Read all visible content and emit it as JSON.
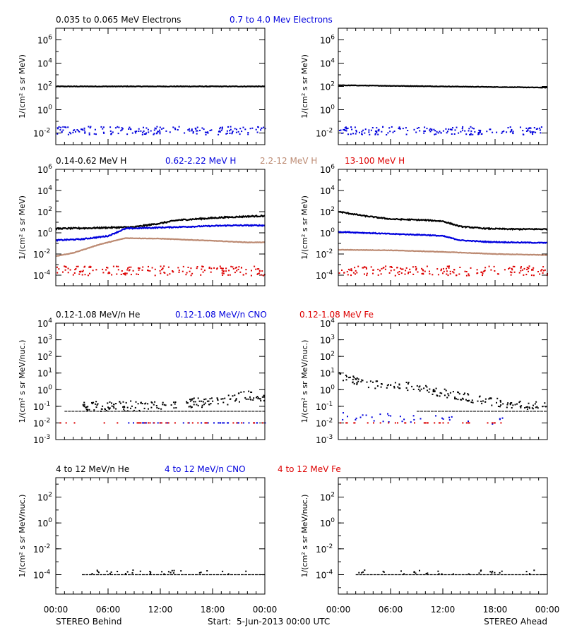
{
  "colors": {
    "black": "#000000",
    "blue": "#0000dd",
    "tan": "#bc8a72",
    "red": "#dd0000"
  },
  "time_axis": {
    "ticks": [
      "00:00",
      "06:00",
      "12:00",
      "18:00",
      "00:00"
    ],
    "left_caption": "STEREO Behind",
    "center_caption": "Start:  5-Jun-2013 00:00 UTC",
    "right_caption": "STEREO Ahead"
  },
  "chart_data": [
    {
      "type": "scatter",
      "row": 0,
      "ylabel": "1/(cm² s sr MeV)",
      "log_scale": true,
      "ylim_exp": [
        -3,
        7
      ],
      "yticks": [
        {
          "base": "10",
          "exp": "6",
          "e": 6
        },
        {
          "base": "10",
          "exp": "4",
          "e": 4
        },
        {
          "base": "10",
          "exp": "2",
          "e": 2
        },
        {
          "base": "10",
          "exp": "0",
          "e": 0
        },
        {
          "base": "10",
          "exp": "-2",
          "e": -2
        }
      ],
      "legend": [
        {
          "text": "0.035 to 0.065 MeV Electrons",
          "color": "black"
        },
        {
          "text": "0.7 to 4.0 Mev Electrons",
          "color": "blue"
        }
      ],
      "behind": [
        {
          "color": "black",
          "style": "line",
          "t": [
            0,
            6,
            12,
            18,
            24
          ],
          "logv": [
            2.0,
            2.0,
            2.0,
            2.0,
            2.0
          ],
          "scatter": 0.05
        },
        {
          "color": "blue",
          "style": "dots",
          "t": [
            0,
            24
          ],
          "logv": [
            -1.8,
            -1.8
          ],
          "scatter": 0.35
        }
      ],
      "ahead": [
        {
          "color": "black",
          "style": "line",
          "t": [
            0,
            6,
            12,
            18,
            24
          ],
          "logv": [
            2.1,
            2.05,
            2.0,
            1.95,
            1.9
          ],
          "scatter": 0.04
        },
        {
          "color": "blue",
          "style": "dots",
          "t": [
            0,
            24
          ],
          "logv": [
            -1.8,
            -1.8
          ],
          "scatter": 0.35
        }
      ]
    },
    {
      "type": "scatter",
      "row": 1,
      "ylabel": "1/(cm² s sr MeV)",
      "log_scale": true,
      "ylim_exp": [
        -5,
        6
      ],
      "yticks": [
        {
          "base": "10",
          "exp": "6",
          "e": 6
        },
        {
          "base": "10",
          "exp": "4",
          "e": 4
        },
        {
          "base": "10",
          "exp": "2",
          "e": 2
        },
        {
          "base": "10",
          "exp": "0",
          "e": 0
        },
        {
          "base": "10",
          "exp": "-2",
          "e": -2
        },
        {
          "base": "10",
          "exp": "-4",
          "e": -4
        }
      ],
      "legend": [
        {
          "text": "0.14-0.62 MeV H",
          "color": "black"
        },
        {
          "text": "0.62-2.22 MeV H",
          "color": "blue"
        },
        {
          "text": "2.2-12 MeV H",
          "color": "tan"
        },
        {
          "text": "13-100 MeV H",
          "color": "red"
        }
      ],
      "behind": [
        {
          "color": "black",
          "style": "line",
          "t": [
            0,
            4,
            9,
            12,
            14,
            16,
            19,
            22,
            24
          ],
          "logv": [
            0.4,
            0.45,
            0.55,
            0.9,
            1.2,
            1.3,
            1.45,
            1.55,
            1.6
          ],
          "scatter": 0.12
        },
        {
          "color": "blue",
          "style": "line",
          "t": [
            0,
            3,
            6,
            8,
            12,
            16,
            20,
            24
          ],
          "logv": [
            -0.7,
            -0.6,
            -0.3,
            0.4,
            0.5,
            0.6,
            0.7,
            0.7
          ],
          "scatter": 0.1
        },
        {
          "color": "tan",
          "style": "line",
          "t": [
            0,
            2,
            5,
            8,
            12,
            18,
            22,
            24
          ],
          "logv": [
            -2.2,
            -1.9,
            -1.1,
            -0.5,
            -0.55,
            -0.75,
            -0.9,
            -0.9
          ],
          "scatter": 0.04
        },
        {
          "color": "red",
          "style": "dots",
          "t": [
            0,
            24
          ],
          "logv": [
            -3.6,
            -3.6
          ],
          "scatter": 0.45
        }
      ],
      "ahead": [
        {
          "color": "black",
          "style": "line",
          "t": [
            0,
            3,
            6,
            10,
            12,
            14,
            17,
            20,
            24
          ],
          "logv": [
            2.0,
            1.6,
            1.3,
            1.2,
            1.1,
            0.6,
            0.4,
            0.35,
            0.35
          ],
          "scatter": 0.1
        },
        {
          "color": "blue",
          "style": "line",
          "t": [
            0,
            3,
            6,
            10,
            12,
            14,
            17,
            20,
            24
          ],
          "logv": [
            0.1,
            0.0,
            -0.1,
            -0.2,
            -0.3,
            -0.7,
            -0.85,
            -0.9,
            -0.95
          ],
          "scatter": 0.08
        },
        {
          "color": "tan",
          "style": "line",
          "t": [
            0,
            6,
            12,
            18,
            24
          ],
          "logv": [
            -1.6,
            -1.65,
            -1.8,
            -2.0,
            -2.1
          ],
          "scatter": 0.04
        },
        {
          "color": "red",
          "style": "dots",
          "t": [
            0,
            24
          ],
          "logv": [
            -3.6,
            -3.6
          ],
          "scatter": 0.45
        }
      ]
    },
    {
      "type": "scatter",
      "row": 2,
      "ylabel": "1/(cm² s sr MeV/nuc.)",
      "log_scale": true,
      "ylim_exp": [
        -3,
        4
      ],
      "yticks": [
        {
          "base": "10",
          "exp": "4",
          "e": 4
        },
        {
          "base": "10",
          "exp": "3",
          "e": 3
        },
        {
          "base": "10",
          "exp": "2",
          "e": 2
        },
        {
          "base": "10",
          "exp": "1",
          "e": 1
        },
        {
          "base": "10",
          "exp": "0",
          "e": 0
        },
        {
          "base": "10",
          "exp": "-1",
          "e": -1
        },
        {
          "base": "10",
          "exp": "-2",
          "e": -2
        },
        {
          "base": "10",
          "exp": "-3",
          "e": -3
        }
      ],
      "legend": [
        {
          "text": "0.12-1.08 MeV/n He",
          "color": "black"
        },
        {
          "text": "0.12-1.08 MeV/n CNO",
          "color": "blue"
        },
        {
          "text": "0.12-1.08 MeV Fe",
          "color": "red"
        }
      ],
      "behind": [
        {
          "color": "black",
          "style": "floor",
          "t": [
            1,
            24
          ],
          "logv": [
            -1.3,
            -1.3
          ],
          "scatter": 0
        },
        {
          "color": "black",
          "style": "dots",
          "t": [
            3,
            8,
            12,
            16,
            20,
            22,
            24
          ],
          "logv": [
            -1.0,
            -1.0,
            -0.9,
            -0.8,
            -0.6,
            -0.3,
            -0.5
          ],
          "scatter": 0.3
        },
        {
          "color": "blue",
          "style": "sparse",
          "t": [
            8,
            24
          ],
          "logv": [
            -2.0,
            -2.0
          ],
          "scatter": 0
        },
        {
          "color": "red",
          "style": "sparse",
          "t": [
            0,
            24
          ],
          "logv": [
            -2.0,
            -2.0
          ],
          "scatter": 0
        }
      ],
      "ahead": [
        {
          "color": "black",
          "style": "dots",
          "t": [
            0,
            2,
            4,
            8,
            10,
            12,
            14,
            16,
            20,
            24
          ],
          "logv": [
            0.8,
            0.5,
            0.3,
            0.2,
            0.0,
            -0.2,
            -0.4,
            -0.6,
            -0.9,
            -1.0
          ],
          "scatter": 0.25
        },
        {
          "color": "black",
          "style": "floor",
          "t": [
            9,
            24
          ],
          "logv": [
            -1.3,
            -1.3
          ],
          "scatter": 0
        },
        {
          "color": "blue",
          "style": "sparse",
          "t": [
            0,
            19
          ],
          "logv": [
            -1.6,
            -1.9
          ],
          "scatter": 0.25
        },
        {
          "color": "red",
          "style": "sparse",
          "t": [
            0,
            19
          ],
          "logv": [
            -2.0,
            -2.0
          ],
          "scatter": 0
        }
      ]
    },
    {
      "type": "scatter",
      "row": 3,
      "ylabel": "1/(cm² s sr MeV/nuc.)",
      "log_scale": true,
      "ylim_exp": [
        -5.5,
        3.5
      ],
      "yticks": [
        {
          "base": "10",
          "exp": "2",
          "e": 2
        },
        {
          "base": "10",
          "exp": "0",
          "e": 0
        },
        {
          "base": "10",
          "exp": "-2",
          "e": -2
        },
        {
          "base": "10",
          "exp": "-4",
          "e": -4
        }
      ],
      "legend": [
        {
          "text": "4 to 12 MeV/n He",
          "color": "black"
        },
        {
          "text": "4 to 12 MeV/n CNO",
          "color": "blue"
        },
        {
          "text": "4 to 12 MeV Fe",
          "color": "red"
        }
      ],
      "behind": [
        {
          "color": "black",
          "style": "floor",
          "t": [
            3,
            24
          ],
          "logv": [
            -4.0,
            -4.0
          ],
          "scatter": 0
        },
        {
          "color": "black",
          "style": "sparse",
          "t": [
            4,
            22
          ],
          "logv": [
            -3.8,
            -3.8
          ],
          "scatter": 0.15
        }
      ],
      "ahead": [
        {
          "color": "black",
          "style": "floor",
          "t": [
            2,
            24
          ],
          "logv": [
            -4.0,
            -4.0
          ],
          "scatter": 0
        },
        {
          "color": "black",
          "style": "sparse",
          "t": [
            2,
            23
          ],
          "logv": [
            -3.8,
            -3.8
          ],
          "scatter": 0.15
        }
      ]
    }
  ]
}
